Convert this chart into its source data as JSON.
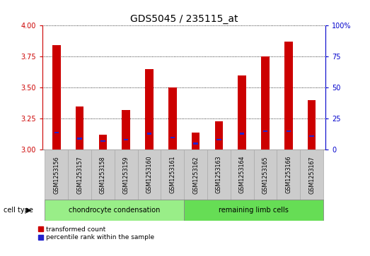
{
  "title": "GDS5045 / 235115_at",
  "samples": [
    "GSM1253156",
    "GSM1253157",
    "GSM1253158",
    "GSM1253159",
    "GSM1253160",
    "GSM1253161",
    "GSM1253162",
    "GSM1253163",
    "GSM1253164",
    "GSM1253165",
    "GSM1253166",
    "GSM1253167"
  ],
  "transformed_count": [
    3.84,
    3.35,
    3.12,
    3.32,
    3.65,
    3.5,
    3.14,
    3.23,
    3.6,
    3.75,
    3.87,
    3.4
  ],
  "percentile_rank": [
    14,
    9,
    7,
    8,
    13,
    10,
    5,
    8,
    13,
    15,
    15,
    11
  ],
  "ylim_left": [
    3.0,
    4.0
  ],
  "ylim_right": [
    0,
    100
  ],
  "yticks_left": [
    3.0,
    3.25,
    3.5,
    3.75,
    4.0
  ],
  "yticks_right": [
    0,
    25,
    50,
    75,
    100
  ],
  "bar_color_red": "#cc0000",
  "bar_color_blue": "#2222cc",
  "group1_label": "chondrocyte condensation",
  "group2_label": "remaining limb cells",
  "group1_color": "#99ee88",
  "group2_color": "#66dd55",
  "cell_type_label": "cell type",
  "legend_red": "transformed count",
  "legend_blue": "percentile rank within the sample",
  "bar_width": 0.35,
  "group1_count": 6,
  "group2_count": 6,
  "title_fontsize": 10,
  "axis_fontsize": 7,
  "right_axis_color": "#0000cc",
  "left_axis_color": "#cc0000",
  "grid_color": "#000000",
  "sample_bg_color": "#cccccc",
  "sample_border_color": "#aaaaaa"
}
